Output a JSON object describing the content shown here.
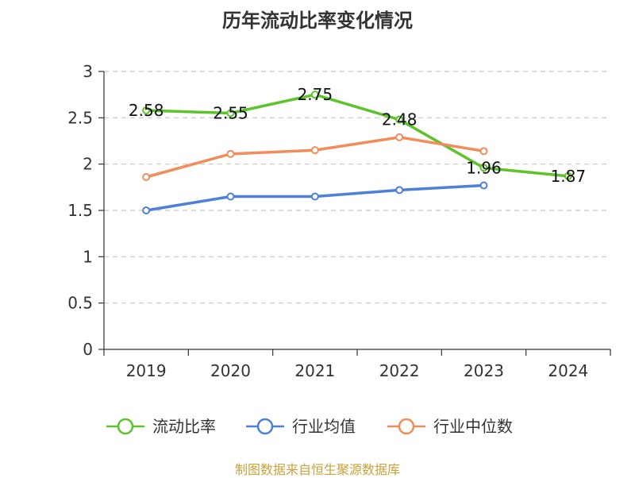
{
  "chart_data": {
    "type": "line",
    "title": "历年流动比率变化情况",
    "categories": [
      "2019",
      "2020",
      "2021",
      "2022",
      "2023",
      "2024"
    ],
    "ylim": [
      0,
      3
    ],
    "yticks": [
      "0",
      "0.5",
      "1",
      "1.5",
      "2",
      "2.5",
      "3"
    ],
    "grid": true,
    "legend_position": "bottom",
    "series": [
      {
        "name": "流动比率",
        "color": "#5cc42a",
        "values": [
          2.58,
          2.55,
          2.75,
          2.48,
          1.96,
          1.87
        ],
        "labels": [
          "2.58",
          "2.55",
          "2.75",
          "2.48",
          "1.96",
          "1.87"
        ]
      },
      {
        "name": "行业均值",
        "color": "#4e7fd9",
        "values": [
          1.5,
          1.65,
          1.65,
          1.72,
          1.77,
          null
        ]
      },
      {
        "name": "行业中位数",
        "color": "#f28c5a",
        "values": [
          1.86,
          2.11,
          2.15,
          2.29,
          2.14,
          null
        ]
      }
    ]
  },
  "source": "制图数据来自恒生聚源数据库"
}
